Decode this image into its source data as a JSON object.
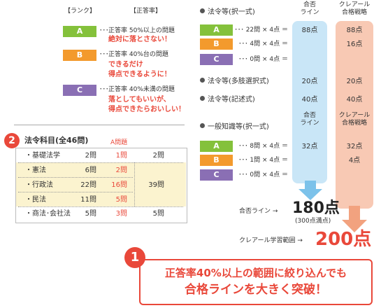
{
  "rank_header": {
    "rank": "【ランク】",
    "rate": "【正答率】"
  },
  "ranks": [
    {
      "label": "A",
      "rate_text": "正答率 50%以上の問題",
      "note": [
        "絶対に落とさない！"
      ]
    },
    {
      "label": "B",
      "rate_text": "正答率 40%台の問題",
      "note": [
        "できるだけ",
        "得点できるように！"
      ]
    },
    {
      "label": "C",
      "rate_text": "正答率 40%未満の問題",
      "note": [
        "落としてもいいが、",
        "得点できたらおいしい！"
      ]
    }
  ],
  "subjects": {
    "badge": "2",
    "title": "法令科目(全46問)",
    "a_header": "A問題",
    "rows": [
      {
        "name": "・基礎法学",
        "total": "2問",
        "a": "1問",
        "group": "2問"
      },
      {
        "name": "・憲法",
        "total": "6問",
        "a": "2問"
      },
      {
        "name": "・行政法",
        "total": "22問",
        "a": "16問",
        "group": "39問"
      },
      {
        "name": "・民法",
        "total": "11問",
        "a": "5問"
      },
      {
        "name": "・商法･会社法",
        "total": "5問",
        "a": "3問",
        "group": "5問"
      }
    ]
  },
  "col_headers": {
    "pass": [
      "合否",
      "ライン"
    ],
    "clear": [
      "クレアール",
      "合格戦略"
    ]
  },
  "law": {
    "heading": "法令等(択一式)",
    "rows": [
      {
        "label": "A",
        "formula": "･･･ 22問 × 4点 ＝",
        "pass": "88点",
        "clear": "88点"
      },
      {
        "label": "B",
        "formula": "･･･ 4問 × 4点 ＝",
        "pass": "",
        "clear": "16点"
      },
      {
        "label": "C",
        "formula": "･･･ 0問 × 4点 ＝",
        "pass": "",
        "clear": ""
      }
    ]
  },
  "multi": {
    "heading": "法令等(多肢選択式)",
    "pass": "20点",
    "clear": "20点"
  },
  "essay": {
    "heading": "法令等(記述式)",
    "pass": "40点",
    "clear": "40点"
  },
  "general": {
    "heading": "一般知識等(択一式)",
    "rows": [
      {
        "label": "A",
        "formula": "･･･ 8問 × 4点 ＝",
        "pass": "32点",
        "clear": "32点"
      },
      {
        "label": "B",
        "formula": "･･･ 1問 × 4点 ＝",
        "pass": "",
        "clear": "4点"
      },
      {
        "label": "C",
        "formula": "･･･ 0問 × 4点 ＝",
        "pass": "",
        "clear": ""
      }
    ]
  },
  "totals": {
    "pass_label": "合否ライン →",
    "pass_value": "180点",
    "pass_note": "(300点満点)",
    "clear_label": "クレアール学習範囲 →",
    "clear_value": "200点"
  },
  "callout": {
    "badge": "1",
    "line1": "正答率40%以上の範囲に絞り込んでも",
    "line2": "合格ラインを大きく突破！"
  },
  "colors": {
    "green": "#84c13b",
    "orange": "#f39a2d",
    "purple": "#8a6fb4",
    "blue": "#c9e6f7",
    "pink": "#f8c9b4",
    "red": "#e9483a"
  }
}
